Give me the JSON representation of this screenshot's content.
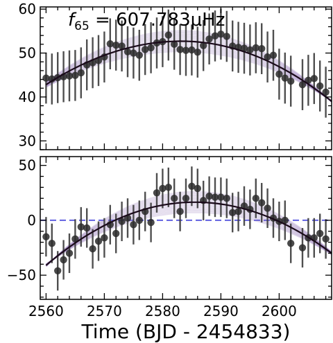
{
  "figure": {
    "xlabel": "Time (BJD - 2454833)",
    "annotation_prefix": "f",
    "annotation_subscript": "65",
    "annotation_value": " = 607.783μHz"
  },
  "colors": {
    "points": "#2a2a2a",
    "errorbars": "#3c3c3c",
    "mean_curve": "#1a0a1a",
    "posterior_band": "#8a6bb0",
    "zero_line": "#6060e0"
  },
  "chart_data": [
    {
      "type": "scatter",
      "panel": "top",
      "title": "",
      "xlabel": "",
      "ylabel": "",
      "xlim": [
        2559,
        2609
      ],
      "ylim": [
        28,
        60.5
      ],
      "xticks": [
        2560,
        2570,
        2580,
        2590,
        2600
      ],
      "yticks": [
        30,
        40,
        50,
        60
      ],
      "ytick_labels": [
        "30",
        "40",
        "50",
        "60"
      ],
      "x": [
        2560,
        2561,
        2562,
        2563,
        2564,
        2565,
        2566,
        2567,
        2568,
        2569,
        2570,
        2571,
        2572,
        2573,
        2574,
        2575,
        2576,
        2577,
        2578,
        2579,
        2580,
        2581,
        2582,
        2583,
        2584,
        2585,
        2586,
        2587,
        2588,
        2589,
        2590,
        2591,
        2592,
        2593,
        2594,
        2595,
        2596,
        2597,
        2598,
        2599,
        2600,
        2601,
        2602,
        2604,
        2605,
        2606,
        2607,
        2608
      ],
      "y": [
        44.3,
        44.1,
        44.4,
        44.6,
        44.8,
        44.9,
        45.5,
        47.3,
        47.8,
        48.3,
        49.1,
        52.1,
        51.8,
        51.6,
        50.3,
        50.0,
        49.5,
        50.8,
        51.2,
        52.3,
        52.6,
        54.1,
        52.0,
        50.8,
        50.6,
        50.7,
        50.2,
        51.7,
        53.2,
        53.9,
        54.3,
        53.8,
        51.6,
        51.3,
        51.1,
        50.7,
        51.2,
        51.0,
        49.1,
        49.5,
        45.2,
        44.3,
        43.6,
        42.8,
        43.8,
        44.2,
        42.5,
        41.1
      ],
      "yerr": 5.8,
      "model": {
        "form": "quadratic",
        "vertex_x": 2583.2,
        "peak_y": 52.7,
        "left_end": [
          2560,
          42.8
        ],
        "right_end": [
          2609,
          39.0
        ]
      }
    },
    {
      "type": "scatter",
      "panel": "bottom",
      "title": "",
      "xlabel": "Time (BJD - 2454833)",
      "ylabel": "",
      "xlim": [
        2559,
        2609
      ],
      "ylim": [
        -72,
        58
      ],
      "xticks": [
        2560,
        2570,
        2580,
        2590,
        2600
      ],
      "xtick_labels": [
        "2560",
        "2570",
        "2580",
        "2590",
        "2600"
      ],
      "yticks": [
        -50,
        0,
        50
      ],
      "ytick_labels": [
        "−50",
        "0",
        "50"
      ],
      "reference_line_y": 0,
      "x": [
        2560,
        2561,
        2562,
        2563,
        2564,
        2565,
        2566,
        2567,
        2568,
        2569,
        2570,
        2571,
        2572,
        2573,
        2574,
        2575,
        2576,
        2577,
        2578,
        2579,
        2580,
        2581,
        2582,
        2583,
        2584,
        2585,
        2586,
        2587,
        2588,
        2589,
        2590,
        2591,
        2592,
        2593,
        2594,
        2595,
        2596,
        2597,
        2598,
        2599,
        2600,
        2601,
        2602,
        2604,
        2605,
        2606,
        2607,
        2608
      ],
      "y": [
        -15,
        -21,
        -46,
        -36,
        -30,
        -17,
        -6,
        -7,
        -26,
        -19,
        -16,
        -4,
        -12,
        -1,
        2,
        -4,
        0,
        8,
        -2,
        25,
        29,
        30,
        20,
        8,
        20,
        31,
        29,
        18,
        22,
        21,
        21,
        20,
        7,
        8,
        13,
        10,
        20,
        16,
        11,
        2,
        -1,
        0,
        -21,
        -25,
        -16,
        -16,
        -12,
        -17
      ],
      "yerr": 18,
      "model": {
        "form": "quadratic",
        "vertex_x": 2585.5,
        "peak_y": 16.5,
        "left_end": [
          2560,
          -41
        ],
        "right_end": [
          2609,
          -30
        ]
      }
    }
  ]
}
